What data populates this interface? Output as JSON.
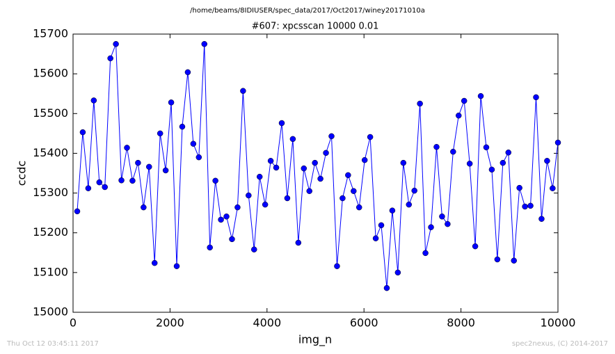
{
  "chart_data": {
    "type": "line",
    "suptitle": "/home/beams/8IDIUSER/spec_data/2017/Oct2017/winey20171010a",
    "title": "#607: xpcsscan 10000 0.01",
    "xlabel": "img_n",
    "ylabel": "ccdc",
    "footer_left": "Thu Oct 12 03:45:11 2017",
    "footer_right": "spec2nexus, (C) 2014-2017",
    "x": [
      86,
      200,
      314,
      428,
      542,
      656,
      770,
      884,
      998,
      1112,
      1226,
      1340,
      1454,
      1568,
      1682,
      1796,
      1910,
      2024,
      2138,
      2252,
      2366,
      2480,
      2594,
      2708,
      2822,
      2936,
      3050,
      3164,
      3278,
      3392,
      3506,
      3620,
      3734,
      3848,
      3962,
      4076,
      4190,
      4304,
      4418,
      4532,
      4646,
      4760,
      4874,
      4988,
      5102,
      5216,
      5330,
      5444,
      5558,
      5672,
      5786,
      5900,
      6014,
      6128,
      6242,
      6356,
      6470,
      6584,
      6698,
      6812,
      6926,
      7040,
      7154,
      7268,
      7382,
      7496,
      7610,
      7724,
      7838,
      7952,
      8066,
      8180,
      8294,
      8408,
      8522,
      8636,
      8750,
      8864,
      8978,
      9092,
      9206,
      9320,
      9434,
      9548,
      9662,
      9776,
      9890,
      10000
    ],
    "series": [
      {
        "color": "#0000ff",
        "values": [
          15254,
          15453,
          15312,
          15533,
          15327,
          15315,
          15639,
          15675,
          15332,
          15414,
          15331,
          15376,
          15264,
          15366,
          15124,
          15450,
          15357,
          15528,
          15116,
          15467,
          15604,
          15424,
          15390,
          15675,
          15163,
          15331,
          15233,
          15241,
          15184,
          15264,
          15557,
          15294,
          15158,
          15341,
          15271,
          15381,
          15364,
          15476,
          15287,
          15436,
          15175,
          15362,
          15305,
          15376,
          15336,
          15401,
          15443,
          15116,
          15287,
          15345,
          15305,
          15264,
          15383,
          15441,
          15186,
          15219,
          15061,
          15256,
          15100,
          15376,
          15271,
          15306,
          15525,
          15149,
          15214,
          15416,
          15241,
          15222,
          15404,
          15495,
          15532,
          15374,
          15166,
          15544,
          15415,
          15359,
          15133,
          15376,
          15402,
          15130,
          15313,
          15266,
          15268,
          15541,
          15235,
          15381,
          15312,
          15427
        ]
      }
    ],
    "xlim": [
      0,
      10000
    ],
    "xticks": [
      0,
      2000,
      4000,
      6000,
      8000,
      10000
    ],
    "ylim": [
      15000,
      15700
    ],
    "yticks": [
      15000,
      15100,
      15200,
      15300,
      15400,
      15500,
      15600,
      15700
    ],
    "grid": false
  }
}
